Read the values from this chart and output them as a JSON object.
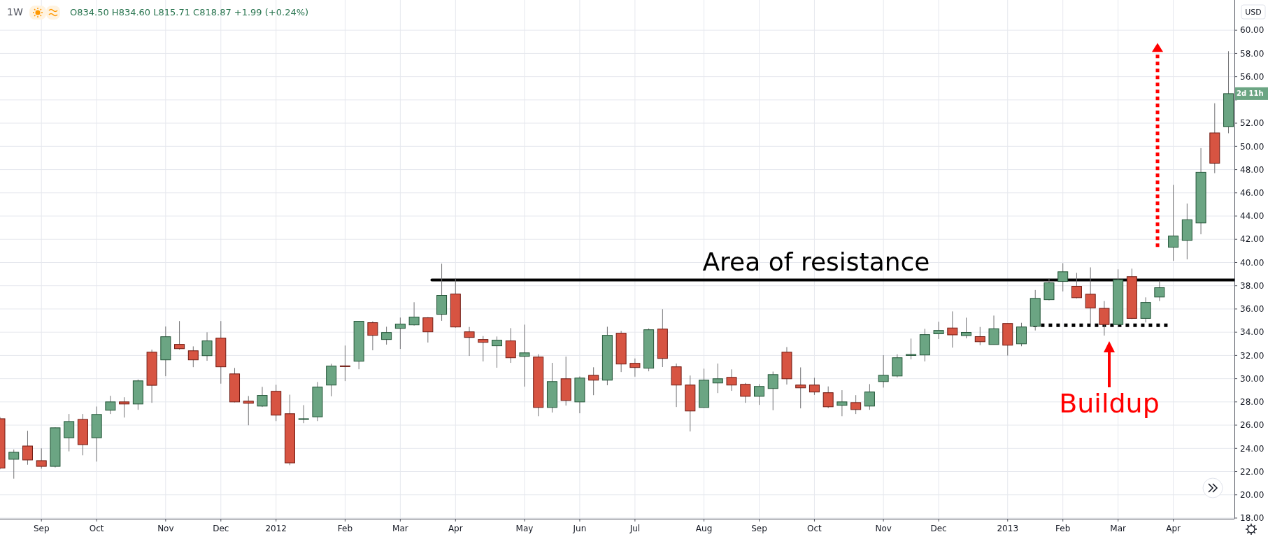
{
  "chart_data": {
    "type": "candlestick",
    "ylabel": "USD",
    "x": [
      "2011-08-15",
      "2011-08-22",
      "2011-08-29",
      "2011-09-05",
      "2011-09-12",
      "2011-09-19",
      "2011-09-26",
      "2011-10-03",
      "2011-10-10",
      "2011-10-17",
      "2011-10-24",
      "2011-10-31",
      "2011-11-07",
      "2011-11-14",
      "2011-11-21",
      "2011-11-28",
      "2011-12-05",
      "2011-12-12",
      "2011-12-19",
      "2011-12-26",
      "2012-01-02",
      "2012-01-09",
      "2012-01-16",
      "2012-01-23",
      "2012-01-30",
      "2012-02-06",
      "2012-02-13",
      "2012-02-20",
      "2012-02-27",
      "2012-03-05",
      "2012-03-12",
      "2012-03-19",
      "2012-03-26",
      "2012-04-02",
      "2012-04-09",
      "2012-04-16",
      "2012-04-23",
      "2012-04-30",
      "2012-05-07",
      "2012-05-14",
      "2012-05-21",
      "2012-05-28",
      "2012-06-04",
      "2012-06-11",
      "2012-06-18",
      "2012-06-25",
      "2012-07-02",
      "2012-07-09",
      "2012-07-16",
      "2012-07-23",
      "2012-07-30",
      "2012-08-06",
      "2012-08-13",
      "2012-08-20",
      "2012-08-27",
      "2012-09-03",
      "2012-09-10",
      "2012-09-17",
      "2012-09-24",
      "2012-10-01",
      "2012-10-08",
      "2012-10-15",
      "2012-10-22",
      "2012-10-29",
      "2012-11-05",
      "2012-11-12",
      "2012-11-19",
      "2012-11-26",
      "2012-12-03",
      "2012-12-10",
      "2012-12-17",
      "2012-12-24",
      "2012-12-31",
      "2013-01-07",
      "2013-01-14",
      "2013-01-21",
      "2013-01-28",
      "2013-02-04",
      "2013-02-11",
      "2013-02-18",
      "2013-02-25",
      "2013-03-04",
      "2013-03-11",
      "2013-03-18",
      "2013-03-25",
      "2013-04-01",
      "2013-04-08",
      "2013-04-15",
      "2013-04-22",
      "2013-04-29"
    ],
    "ohlc": [
      [
        26.55,
        26.7,
        22.2,
        22.3
      ],
      [
        23.06,
        23.9,
        21.39,
        23.66
      ],
      [
        24.2,
        25.51,
        22.59,
        23.0
      ],
      [
        22.94,
        24.0,
        22.25,
        22.45
      ],
      [
        22.45,
        25.8,
        22.35,
        25.77
      ],
      [
        24.91,
        26.96,
        23.74,
        26.31
      ],
      [
        26.49,
        26.96,
        23.4,
        24.32
      ],
      [
        24.91,
        27.6,
        22.86,
        26.92
      ],
      [
        27.28,
        28.52,
        26.96,
        28.0
      ],
      [
        28.0,
        28.4,
        26.65,
        27.82
      ],
      [
        27.82,
        29.93,
        27.32,
        29.81
      ],
      [
        32.28,
        32.5,
        27.92,
        29.43
      ],
      [
        31.62,
        34.49,
        30.21,
        33.61
      ],
      [
        32.95,
        34.96,
        32.5,
        32.58
      ],
      [
        32.4,
        32.78,
        30.99,
        31.62
      ],
      [
        31.98,
        33.99,
        31.54,
        33.25
      ],
      [
        33.49,
        34.96,
        29.57,
        31.02
      ],
      [
        30.41,
        30.92,
        27.96,
        28.0
      ],
      [
        28.06,
        28.5,
        25.99,
        27.88
      ],
      [
        27.64,
        29.29,
        27.56,
        28.56
      ],
      [
        28.91,
        29.47,
        26.35,
        26.86
      ],
      [
        26.98,
        28.62,
        22.55,
        22.75
      ],
      [
        26.5,
        27.72,
        26.17,
        26.55
      ],
      [
        26.71,
        29.71,
        26.35,
        29.27
      ],
      [
        29.45,
        31.28,
        28.48,
        31.08
      ],
      [
        31.1,
        32.85,
        29.79,
        31.08
      ],
      [
        31.5,
        34.94,
        30.81,
        34.94
      ],
      [
        34.82,
        34.94,
        32.44,
        33.73
      ],
      [
        33.37,
        34.47,
        32.93,
        33.97
      ],
      [
        34.33,
        35.26,
        32.56,
        34.7
      ],
      [
        34.63,
        36.58,
        34.57,
        35.3
      ],
      [
        35.24,
        35.3,
        33.11,
        34.03
      ],
      [
        35.54,
        39.9,
        34.98,
        37.17
      ],
      [
        37.29,
        38.6,
        34.39,
        34.45
      ],
      [
        34.03,
        34.45,
        31.96,
        33.55
      ],
      [
        33.37,
        33.67,
        31.48,
        33.13
      ],
      [
        32.83,
        33.63,
        30.94,
        33.31
      ],
      [
        33.25,
        34.35,
        31.36,
        31.8
      ],
      [
        31.92,
        34.65,
        29.31,
        32.22
      ],
      [
        31.86,
        32.1,
        26.77,
        27.52
      ],
      [
        27.52,
        31.36,
        27.08,
        29.75
      ],
      [
        29.99,
        31.9,
        27.68,
        28.12
      ],
      [
        28.0,
        30.19,
        27.02,
        30.05
      ],
      [
        30.29,
        30.98,
        28.58,
        29.87
      ],
      [
        29.87,
        34.47,
        29.43,
        33.73
      ],
      [
        33.91,
        34.11,
        30.57,
        31.26
      ],
      [
        31.32,
        31.74,
        30.17,
        30.96
      ],
      [
        30.9,
        34.33,
        30.63,
        34.21
      ],
      [
        34.27,
        35.98,
        31.0,
        31.74
      ],
      [
        31.02,
        31.3,
        27.56,
        29.45
      ],
      [
        29.45,
        30.27,
        25.45,
        27.22
      ],
      [
        27.52,
        30.86,
        27.5,
        29.87
      ],
      [
        29.63,
        31.3,
        28.76,
        29.99
      ],
      [
        30.11,
        30.8,
        28.95,
        29.45
      ],
      [
        29.51,
        29.63,
        27.92,
        28.48
      ],
      [
        28.48,
        29.53,
        27.74,
        29.33
      ],
      [
        29.15,
        30.61,
        27.28,
        30.35
      ],
      [
        32.28,
        32.72,
        29.49,
        29.99
      ],
      [
        29.45,
        30.97,
        27.44,
        29.21
      ],
      [
        29.45,
        30.07,
        28.6,
        28.85
      ],
      [
        28.79,
        29.33,
        27.46,
        27.58
      ],
      [
        27.7,
        29.01,
        26.77,
        28.0
      ],
      [
        27.94,
        28.58,
        26.96,
        27.34
      ],
      [
        27.64,
        29.53,
        27.32,
        28.85
      ],
      [
        29.75,
        32.02,
        29.23,
        30.29
      ],
      [
        30.23,
        32.1,
        30.11,
        31.8
      ],
      [
        32.0,
        33.45,
        31.66,
        32.08
      ],
      [
        32.04,
        34.29,
        31.48,
        33.79
      ],
      [
        33.86,
        34.9,
        33.41,
        34.15
      ],
      [
        34.36,
        35.79,
        32.67,
        33.77
      ],
      [
        33.71,
        35.25,
        33.47,
        33.98
      ],
      [
        33.62,
        34.45,
        32.88,
        33.18
      ],
      [
        32.94,
        35.43,
        32.94,
        34.3
      ],
      [
        34.75,
        34.75,
        31.99,
        32.88
      ],
      [
        33.0,
        34.81,
        32.79,
        34.45
      ],
      [
        34.51,
        37.63,
        34.15,
        36.91
      ],
      [
        36.8,
        38.61,
        36.74,
        38.25
      ],
      [
        38.37,
        39.94,
        37.51,
        39.2
      ],
      [
        37.95,
        39.11,
        36.91,
        36.97
      ],
      [
        37.27,
        39.58,
        34.66,
        36.08
      ],
      [
        36.05,
        36.68,
        33.71,
        34.66
      ],
      [
        34.66,
        39.41,
        34.6,
        38.52
      ],
      [
        38.78,
        39.47,
        35.13,
        35.19
      ],
      [
        35.19,
        37.0,
        34.84,
        36.56
      ],
      [
        37.03,
        38.43,
        36.68,
        37.83
      ],
      [
        41.31,
        46.68,
        40.15,
        42.28
      ],
      [
        41.9,
        45.07,
        40.27,
        43.68
      ],
      [
        43.41,
        49.85,
        42.43,
        47.77
      ],
      [
        51.16,
        53.71,
        47.69,
        48.55
      ],
      [
        51.69,
        58.19,
        51.13,
        54.54
      ]
    ],
    "series": [
      {
        "type": "line",
        "x": [
          "2012-03-21",
          "2013-05-02"
        ],
        "values": [
          38.5,
          38.5
        ],
        "color": "#000000",
        "line_style": "solid"
      },
      {
        "type": "line",
        "x": [
          "2013-01-20",
          "2013-03-30"
        ],
        "values": [
          34.6,
          34.6
        ],
        "color": "#000000",
        "line_style": "dotted"
      }
    ],
    "xlim": [
      "2011-08-15",
      "2013-05-02"
    ],
    "xticks": [
      {
        "value": "2011-09-05",
        "label": "Sep"
      },
      {
        "value": "2011-10-03",
        "label": "Oct"
      },
      {
        "value": "2011-11-07",
        "label": "Nov"
      },
      {
        "value": "2011-12-05",
        "label": "Dec"
      },
      {
        "value": "2012-01-02",
        "label": "2012"
      },
      {
        "value": "2012-02-06",
        "label": "Feb"
      },
      {
        "value": "2012-03-05",
        "label": "Mar"
      },
      {
        "value": "2012-04-02",
        "label": "Apr"
      },
      {
        "value": "2012-05-07",
        "label": "May"
      },
      {
        "value": "2012-06-04",
        "label": "Jun"
      },
      {
        "value": "2012-07-02",
        "label": "Jul"
      },
      {
        "value": "2012-08-06",
        "label": "Aug"
      },
      {
        "value": "2012-09-03",
        "label": "Sep"
      },
      {
        "value": "2012-10-01",
        "label": "Oct"
      },
      {
        "value": "2012-11-05",
        "label": "Nov"
      },
      {
        "value": "2012-12-03",
        "label": "Dec"
      },
      {
        "value": "2013-01-07",
        "label": "2013"
      },
      {
        "value": "2013-02-04",
        "label": "Feb"
      },
      {
        "value": "2013-03-04",
        "label": "Mar"
      },
      {
        "value": "2013-04-01",
        "label": "Apr"
      }
    ],
    "ylim": [
      17.94,
      62.6
    ],
    "yticks": [
      {
        "value": 18,
        "label": "18.00"
      },
      {
        "value": 20,
        "label": "20.00"
      },
      {
        "value": 22,
        "label": "22.00"
      },
      {
        "value": 24,
        "label": "24.00"
      },
      {
        "value": 26,
        "label": "26.00"
      },
      {
        "value": 28,
        "label": "28.00"
      },
      {
        "value": 30,
        "label": "30.00"
      },
      {
        "value": 32,
        "label": "32.00"
      },
      {
        "value": 34,
        "label": "34.00"
      },
      {
        "value": 36,
        "label": "36.00"
      },
      {
        "value": 38,
        "label": "38.00"
      },
      {
        "value": 40,
        "label": "40.00"
      },
      {
        "value": 42,
        "label": "42.00"
      },
      {
        "value": 44,
        "label": "44.00"
      },
      {
        "value": 46,
        "label": "46.00"
      },
      {
        "value": 48,
        "label": "48.00"
      },
      {
        "value": 50,
        "label": "50.00"
      },
      {
        "value": 52,
        "label": "52.00"
      },
      {
        "value": 54,
        "label": null
      },
      {
        "value": 56,
        "label": "56.00"
      },
      {
        "value": 58,
        "label": "58.00"
      },
      {
        "value": 60,
        "label": "60.00"
      }
    ],
    "grid": true,
    "annotations": [
      "1W",
      "O834.50 H834.60 L815.71 C818.87 +1.99 (+0.24%)",
      "Area of resistance",
      "Buildup",
      "2d 11h"
    ]
  }
}
